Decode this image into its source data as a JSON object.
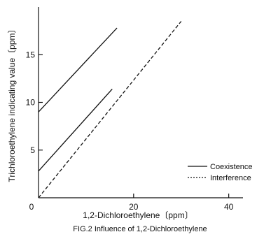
{
  "chart_data": {
    "type": "line",
    "caption": "FIG.2 Influence of 1,2-Dichloroethylene",
    "xlabel": "1,2-Dichloroethylene〔ppm〕",
    "ylabel": "Trichloroethylene indicating value〔ppm〕",
    "xlim": [
      0,
      43
    ],
    "ylim": [
      0,
      20
    ],
    "x_ticks": [
      0,
      20,
      40
    ],
    "y_ticks": [
      5,
      10,
      15
    ],
    "grid": false,
    "legend_position": "right",
    "legend": [
      {
        "label": "Coexistence",
        "style": "solid"
      },
      {
        "label": "Interference",
        "style": "dashed"
      }
    ],
    "series": [
      {
        "style": "solid",
        "x": [
          0,
          16.5
        ],
        "y": [
          9,
          17.8
        ]
      },
      {
        "style": "solid",
        "x": [
          0,
          15.5
        ],
        "y": [
          2.8,
          11.4
        ]
      },
      {
        "style": "dashed",
        "x": [
          0,
          30
        ],
        "y": [
          0,
          18.5
        ]
      }
    ],
    "colors": {
      "line": "#111111",
      "axis": "#111111"
    }
  }
}
